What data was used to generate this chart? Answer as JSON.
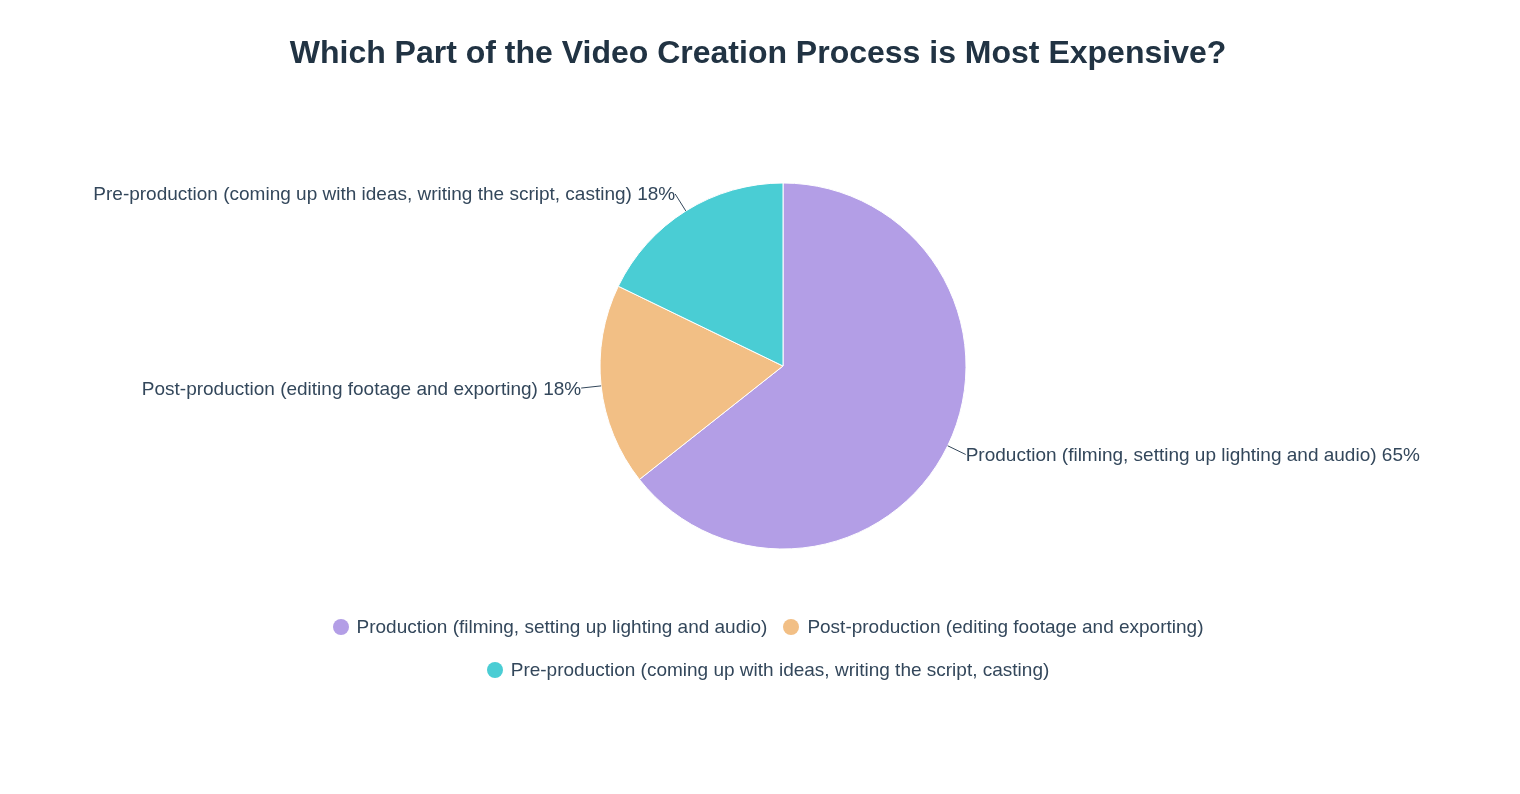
{
  "chart_data": {
    "type": "pie",
    "title": "Which Part of the Video Creation Process is Most Expensive?",
    "categories": [
      "Production (filming, setting up lighting and audio)",
      "Post-production (editing footage and exporting)",
      "Pre-production (coming up with ideas, writing the script, casting)"
    ],
    "values": [
      65,
      18,
      18
    ],
    "value_labels": [
      "65%",
      "18%",
      "18%"
    ],
    "colors": [
      "#b39ee6",
      "#f2bf85",
      "#4acdd4"
    ],
    "legend": "bottom"
  }
}
